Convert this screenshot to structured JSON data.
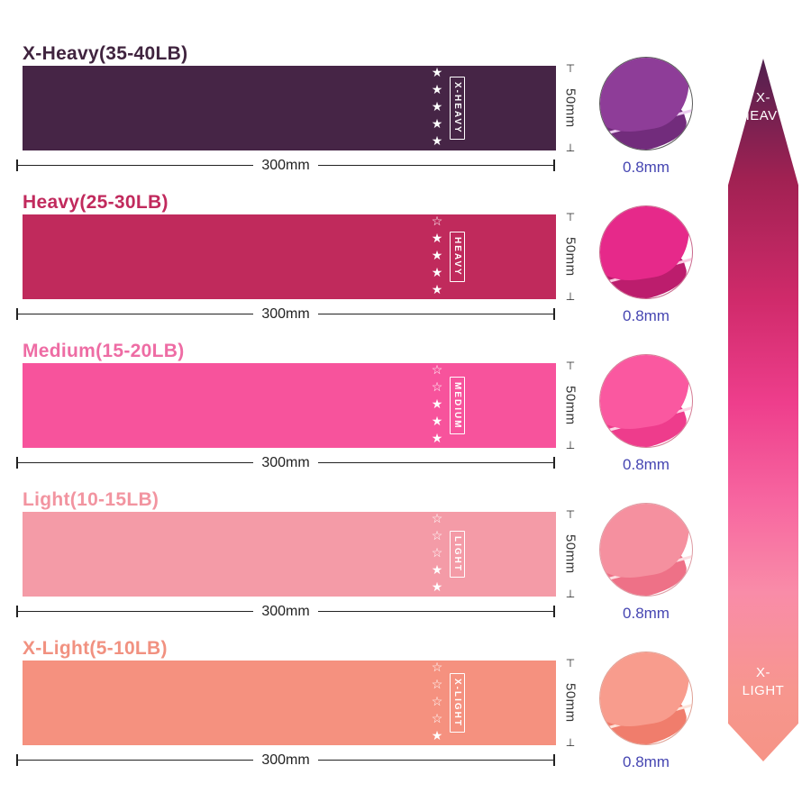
{
  "page": {
    "background": "#ffffff"
  },
  "dims": {
    "width_label": "300mm",
    "height_label": "50mm",
    "thickness_label": "0.8mm",
    "tick_top": "⊤",
    "tick_bottom": "⊥",
    "thickness_text_color": "#4646b2"
  },
  "bands": [
    {
      "title": "X-Heavy(35-40LB)",
      "title_color": "#40243f",
      "color": "#462546",
      "tag": "X-HEAVY",
      "stars": "★★★★★",
      "stars_filled": 5,
      "stars_total": 5,
      "photo": {
        "main": "#8e3d98",
        "dark": "#722c7c",
        "light": "#eccdf0",
        "ring": "#5a5a5a"
      }
    },
    {
      "title": "Heavy(25-30LB)",
      "title_color": "#c12a5d",
      "color": "#c02a5c",
      "tag": "HEAVY",
      "stars": "☆★★★★",
      "stars_filled": 4,
      "stars_total": 5,
      "photo": {
        "main": "#e6298a",
        "dark": "#bc1d6d",
        "light": "#fbc9e1",
        "ring": "#c9688c"
      }
    },
    {
      "title": "Medium(15-20LB)",
      "title_color": "#ee6ca4",
      "color": "#f7539c",
      "tag": "MEDIUM",
      "stars": "☆☆★★★",
      "stars_filled": 3,
      "stars_total": 5,
      "photo": {
        "main": "#fa58a0",
        "dark": "#ee3c8c",
        "light": "#fdd5e6",
        "ring": "#d47b93"
      }
    },
    {
      "title": "Light(10-15LB)",
      "title_color": "#f294a0",
      "color": "#f49ba7",
      "tag": "LIGHT",
      "stars": "☆☆☆★★",
      "stars_filled": 2,
      "stars_total": 5,
      "photo": {
        "main": "#f5909f",
        "dark": "#ee7187",
        "light": "#fcdde1",
        "ring": "#dd9aa2"
      }
    },
    {
      "title": "X-Light(5-10LB)",
      "title_color": "#f19180",
      "color": "#f5917f",
      "tag": "X-LIGHT",
      "stars": "☆☆☆☆★",
      "stars_filled": 1,
      "stars_total": 5,
      "photo": {
        "main": "#f89c8d",
        "dark": "#f07d6c",
        "light": "#fde3da",
        "ring": "#dfa094"
      }
    }
  ],
  "scale": {
    "top_label_line1": "X-",
    "top_label_line2": "HEAVY",
    "bottom_label_line1": "X-",
    "bottom_label_line2": "LIGHT",
    "label_color": "#ffffff",
    "gradient_top": "#50214f",
    "gradient_bottom": "#f69486",
    "gradient_css": "linear-gradient(180deg, #50214f 0%, #a02152 17%, #cf2a6a 34%, #ee3e8c 49%, #f766a0 63%, #f98ca8 76%, #f7968e 90%, #f69486 100%)"
  }
}
